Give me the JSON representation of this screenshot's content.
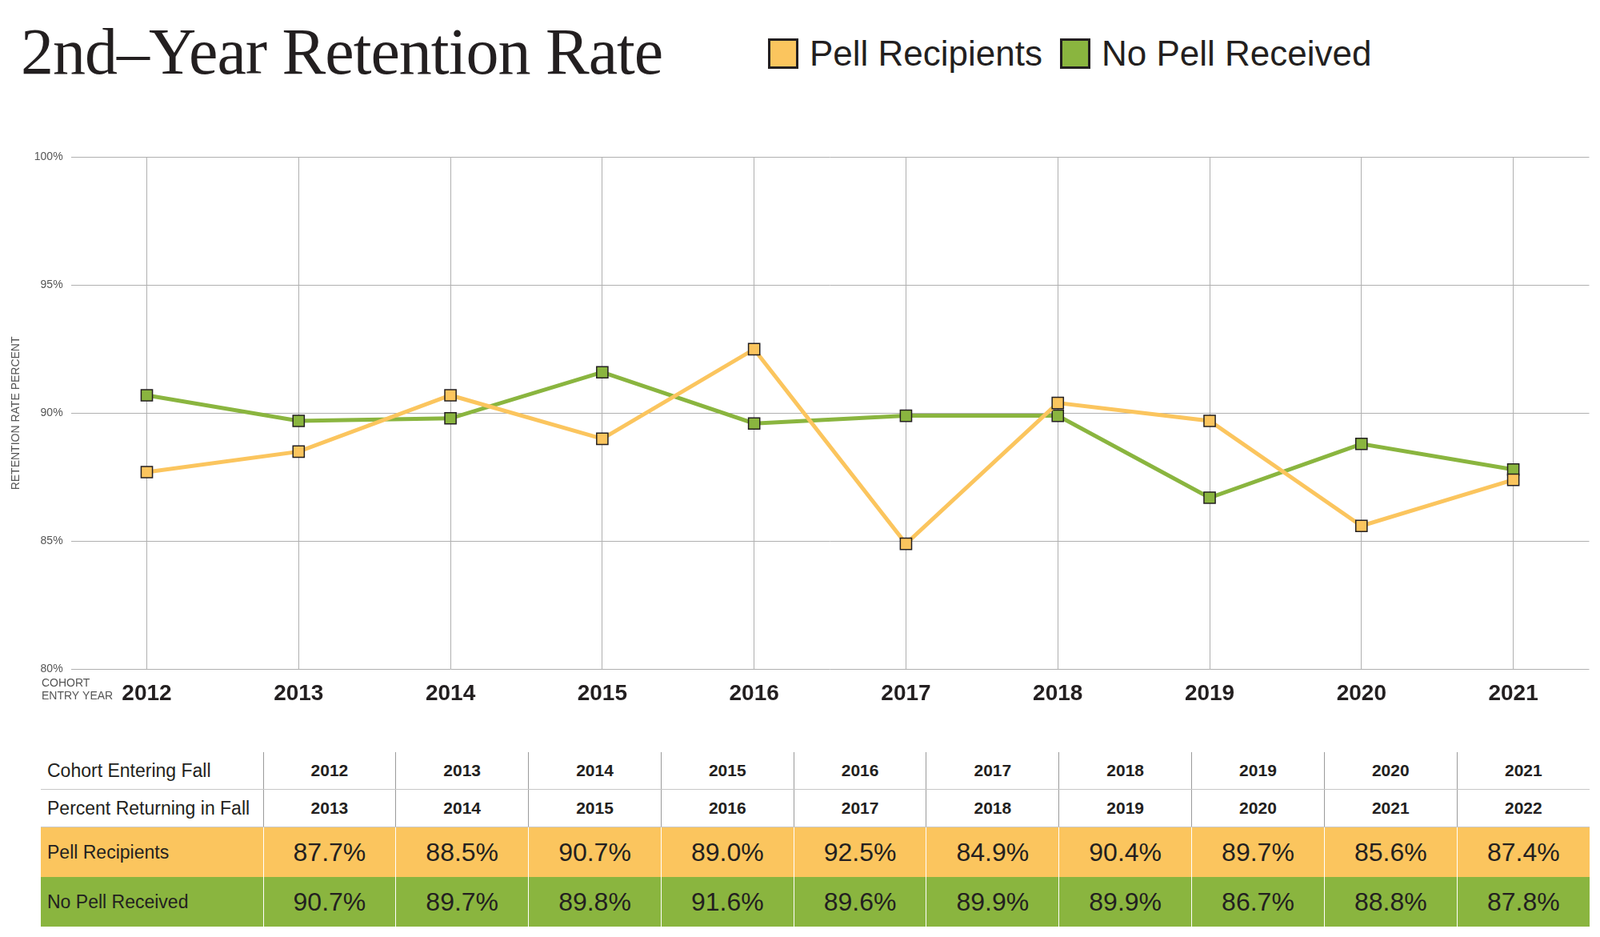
{
  "chart_data": {
    "type": "line",
    "title": "2nd–Year Retention Rate",
    "x_label": "COHORT ENTRY YEAR",
    "y_label": "RETENTION RATE PERCENT",
    "categories": [
      "2012",
      "2013",
      "2014",
      "2015",
      "2016",
      "2017",
      "2018",
      "2019",
      "2020",
      "2021"
    ],
    "series": [
      {
        "name": "Pell Recipients",
        "color": "#fbc55e",
        "marker": "square",
        "values": [
          87.7,
          88.5,
          90.7,
          89.0,
          92.5,
          84.9,
          90.4,
          89.7,
          85.6,
          87.4
        ]
      },
      {
        "name": "No Pell Received",
        "color": "#8ab53f",
        "marker": "square",
        "values": [
          90.7,
          89.7,
          89.8,
          91.6,
          89.6,
          89.9,
          89.9,
          86.7,
          88.8,
          87.8
        ]
      }
    ],
    "ylim": [
      80,
      100
    ],
    "yticks": [
      {
        "value": 80,
        "label": "80%"
      },
      {
        "value": 85,
        "label": "85%"
      },
      {
        "value": 90,
        "label": "90%"
      },
      {
        "value": 95,
        "label": "95%"
      },
      {
        "value": 100,
        "label": "100%"
      }
    ],
    "grid": true,
    "legend": "top"
  },
  "table": {
    "rows": [
      [
        "Cohort Entering Fall",
        "2012",
        "2013",
        "2014",
        "2015",
        "2016",
        "2017",
        "2018",
        "2019",
        "2020",
        "2021"
      ],
      [
        "Percent Returning in Fall",
        "2013",
        "2014",
        "2015",
        "2016",
        "2017",
        "2018",
        "2019",
        "2020",
        "2021",
        "2022"
      ],
      [
        "Pell Recipients",
        "87.7%",
        "88.5%",
        "90.7%",
        "89.0%",
        "92.5%",
        "84.9%",
        "90.4%",
        "89.7%",
        "85.6%",
        "87.4%"
      ],
      [
        "No Pell Received",
        "90.7%",
        "89.7%",
        "89.8%",
        "91.6%",
        "89.6%",
        "89.9%",
        "89.9%",
        "86.7%",
        "88.8%",
        "87.8%"
      ]
    ]
  }
}
